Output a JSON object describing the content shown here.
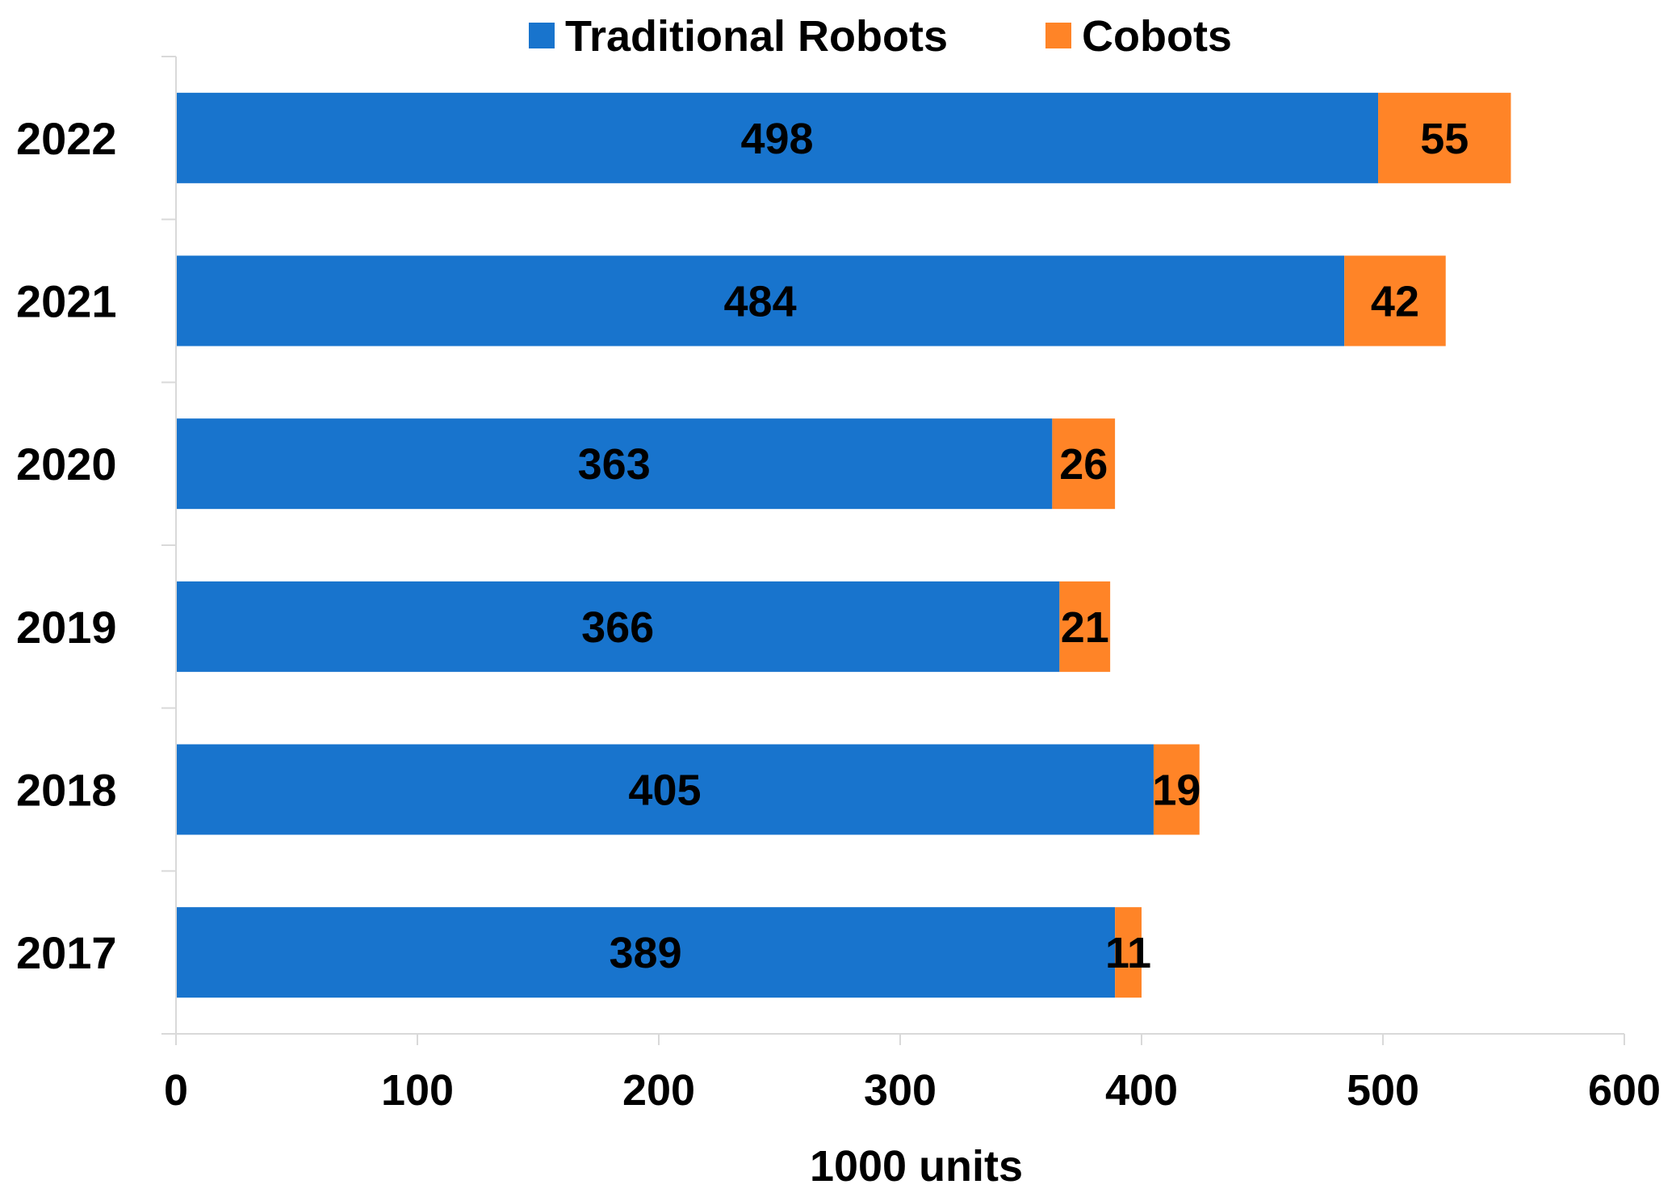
{
  "chart_data": {
    "type": "bar",
    "orientation": "horizontal",
    "stacked": true,
    "categories": [
      "2022",
      "2021",
      "2020",
      "2019",
      "2018",
      "2017"
    ],
    "series": [
      {
        "name": "Traditional Robots",
        "color": "#1874CD",
        "values": [
          498,
          484,
          363,
          366,
          405,
          389
        ]
      },
      {
        "name": "Cobots",
        "color": "#FF8427",
        "values": [
          55,
          42,
          26,
          21,
          19,
          11
        ]
      }
    ],
    "xlabel": "1000 units",
    "ylabel": "",
    "xlim": [
      0,
      600
    ],
    "xticks": [
      0,
      100,
      200,
      300,
      400,
      500,
      600
    ],
    "grid": false,
    "legend_position": "top"
  }
}
